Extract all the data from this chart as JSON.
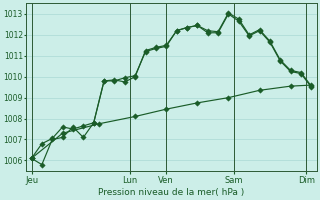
{
  "xlabel": "Pression niveau de la mer( hPa )",
  "bg_color": "#cceee8",
  "grid_color": "#b0ddd8",
  "line_color": "#1a5c28",
  "vline_color": "#2d5a35",
  "ylim": [
    1005.5,
    1013.5
  ],
  "yticks": [
    1006,
    1007,
    1008,
    1009,
    1010,
    1011,
    1012,
    1013
  ],
  "xlim": [
    0,
    28
  ],
  "day_labels": [
    "Jeu",
    "Lun",
    "Ven",
    "Sam",
    "Dim"
  ],
  "day_positions": [
    0.5,
    10,
    13.5,
    20,
    27
  ],
  "vline_x": [
    0.5,
    10,
    13.5,
    20,
    27
  ],
  "line1_x": [
    0.5,
    1.5,
    2.5,
    3.5,
    4.5,
    5.5,
    6.5,
    7.5,
    8.5,
    9.5,
    10.5,
    11.5,
    12.5,
    13.5,
    14.5,
    15.5,
    16.5,
    17.5,
    18.5,
    19.5,
    20.5,
    21.5,
    22.5,
    23.5,
    24.5,
    25.5,
    26.5,
    27.5
  ],
  "line1_y": [
    1006.1,
    1005.8,
    1007.0,
    1007.1,
    1007.6,
    1007.1,
    1007.8,
    1009.8,
    1009.8,
    1009.95,
    1010.05,
    1011.2,
    1011.35,
    1011.45,
    1012.2,
    1012.35,
    1012.45,
    1012.2,
    1012.15,
    1013.05,
    1012.75,
    1012.0,
    1012.25,
    1011.7,
    1010.8,
    1010.3,
    1010.2,
    1009.55
  ],
  "line2_x": [
    0.5,
    1.5,
    2.5,
    3.5,
    4.5,
    5.5,
    6.5,
    7.5,
    8.5,
    9.5,
    10.5,
    11.5,
    12.5,
    13.5,
    14.5,
    15.5,
    16.5,
    17.5,
    18.5,
    19.5,
    20.5,
    21.5,
    22.5,
    23.5,
    24.5,
    25.5,
    26.5,
    27.5
  ],
  "line2_y": [
    1006.1,
    1006.8,
    1007.05,
    1007.6,
    1007.5,
    1007.65,
    1007.8,
    1009.8,
    1009.85,
    1009.75,
    1010.0,
    1011.25,
    1011.4,
    1011.5,
    1012.2,
    1012.35,
    1012.45,
    1012.1,
    1012.1,
    1013.0,
    1012.65,
    1011.95,
    1012.2,
    1011.65,
    1010.75,
    1010.25,
    1010.15,
    1009.5
  ],
  "line3_x": [
    0.5,
    3.5,
    7.0,
    10.5,
    13.5,
    16.5,
    19.5,
    22.5,
    25.5,
    27.5
  ],
  "line3_y": [
    1006.1,
    1007.3,
    1007.75,
    1008.1,
    1008.45,
    1008.75,
    1009.0,
    1009.35,
    1009.55,
    1009.6
  ],
  "marker_size": 2.8,
  "lw": 0.85,
  "figsize": [
    3.2,
    2.0
  ],
  "dpi": 100
}
